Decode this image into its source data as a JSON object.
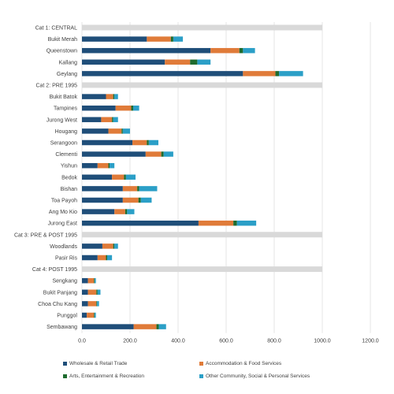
{
  "chart_data": {
    "type": "bar",
    "orientation": "horizontal",
    "stacked": true,
    "title": "",
    "xlabel": "",
    "ylabel": "",
    "xlim": [
      0,
      1200
    ],
    "x_ticks": [
      "0.0",
      "200.0",
      "400.0",
      "600.0",
      "800.0",
      "1000.0",
      "1200.0"
    ],
    "grid": true,
    "legend_position": "bottom",
    "rows": [
      {
        "kind": "group",
        "label": "Cat 1: CENTRAL"
      },
      {
        "kind": "bar",
        "label": "Bukit Merah",
        "values": [
          270,
          100,
          10,
          40
        ]
      },
      {
        "kind": "bar",
        "label": "Queenstown",
        "values": [
          535,
          120,
          15,
          50
        ]
      },
      {
        "kind": "bar",
        "label": "Kallang",
        "values": [
          345,
          105,
          30,
          55
        ]
      },
      {
        "kind": "bar",
        "label": "Geylang",
        "values": [
          670,
          135,
          15,
          100
        ]
      },
      {
        "kind": "group",
        "label": "Cat 2: PRE 1995"
      },
      {
        "kind": "bar",
        "label": "Bukit Batok",
        "values": [
          100,
          30,
          5,
          15
        ]
      },
      {
        "kind": "bar",
        "label": "Tampines",
        "values": [
          140,
          65,
          8,
          25
        ]
      },
      {
        "kind": "bar",
        "label": "Jurong West",
        "values": [
          80,
          45,
          5,
          20
        ]
      },
      {
        "kind": "bar",
        "label": "Hougang",
        "values": [
          110,
          55,
          5,
          30
        ]
      },
      {
        "kind": "bar",
        "label": "Serangoon",
        "values": [
          210,
          60,
          8,
          40
        ]
      },
      {
        "kind": "bar",
        "label": "Clementi",
        "values": [
          265,
          65,
          10,
          40
        ]
      },
      {
        "kind": "bar",
        "label": "Yishun",
        "values": [
          65,
          45,
          5,
          20
        ]
      },
      {
        "kind": "bar",
        "label": "Bedok",
        "values": [
          125,
          50,
          8,
          40
        ]
      },
      {
        "kind": "bar",
        "label": "Bishan",
        "values": [
          170,
          60,
          8,
          75
        ]
      },
      {
        "kind": "bar",
        "label": "Toa Payoh",
        "values": [
          170,
          65,
          10,
          45
        ]
      },
      {
        "kind": "bar",
        "label": "Ang Mo Kio",
        "values": [
          135,
          45,
          8,
          30
        ]
      },
      {
        "kind": "bar",
        "label": "Jurong East",
        "values": [
          485,
          145,
          15,
          80
        ]
      },
      {
        "kind": "group",
        "label": "Cat 3: PRE & POST 1995"
      },
      {
        "kind": "bar",
        "label": "Woodlands",
        "values": [
          85,
          45,
          5,
          15
        ]
      },
      {
        "kind": "bar",
        "label": "Pasir Ris",
        "values": [
          65,
          35,
          5,
          20
        ]
      },
      {
        "kind": "group",
        "label": "Cat 4: POST 1995"
      },
      {
        "kind": "bar",
        "label": "Sengkang",
        "values": [
          25,
          25,
          3,
          5
        ]
      },
      {
        "kind": "bar",
        "label": "Bukit Panjang",
        "values": [
          25,
          35,
          5,
          12
        ]
      },
      {
        "kind": "bar",
        "label": "Choa Chu Kang",
        "values": [
          25,
          35,
          3,
          8
        ]
      },
      {
        "kind": "bar",
        "label": "Punggol",
        "values": [
          20,
          30,
          3,
          5
        ]
      },
      {
        "kind": "bar",
        "label": "Sembawang",
        "values": [
          215,
          95,
          10,
          30
        ]
      }
    ],
    "series": [
      {
        "name": "Wholesale & Retail Trade",
        "color": "#1f4e79"
      },
      {
        "name": "Accommodation & Food Services",
        "color": "#e07b39"
      },
      {
        "name": "Arts, Entertainment & Recreation",
        "color": "#1e6b2e"
      },
      {
        "name": "Other Community, Social & Personal Services",
        "color": "#2b9fc7"
      }
    ],
    "colors": {
      "group_band": "#d9d9d9",
      "gridline": "#d9d9d9",
      "text": "#404040"
    }
  }
}
